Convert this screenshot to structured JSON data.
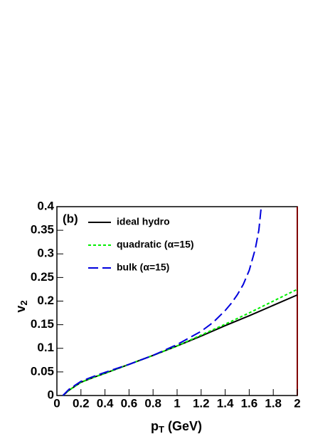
{
  "chart_data": {
    "type": "line",
    "label": "(b)",
    "xlabel": "p",
    "xlabel_sub": "T",
    "xlabel_rest": " (GeV)",
    "ylabel": "v",
    "ylabel_sub": "2",
    "xlim": [
      0,
      2
    ],
    "ylim": [
      0,
      0.4
    ],
    "xticks": [
      0,
      0.2,
      0.4,
      0.6,
      0.8,
      1,
      1.2,
      1.4,
      1.6,
      1.8,
      2
    ],
    "yticks": [
      0,
      0.05,
      0.1,
      0.15,
      0.2,
      0.25,
      0.3,
      0.35,
      0.4
    ],
    "series": [
      {
        "name": "ideal hydro",
        "color": "#000000",
        "style": "solid",
        "x": [
          0.05,
          0.1,
          0.2,
          0.3,
          0.4,
          0.6,
          0.8,
          1.0,
          1.2,
          1.4,
          1.6,
          1.8,
          2.0
        ],
        "values": [
          0,
          0.011,
          0.028,
          0.038,
          0.047,
          0.066,
          0.085,
          0.105,
          0.126,
          0.148,
          0.169,
          0.191,
          0.213
        ]
      },
      {
        "name": "quadratic (α=15)",
        "color": "#00ee00",
        "style": "dotted",
        "x": [
          0.05,
          0.1,
          0.2,
          0.3,
          0.4,
          0.6,
          0.8,
          1.0,
          1.2,
          1.4,
          1.6,
          1.8,
          2.0
        ],
        "values": [
          0,
          0.011,
          0.028,
          0.038,
          0.047,
          0.066,
          0.085,
          0.105,
          0.128,
          0.151,
          0.175,
          0.2,
          0.225
        ]
      },
      {
        "name": "bulk (α=15)",
        "color": "#0000dd",
        "style": "dashed",
        "x": [
          0.05,
          0.1,
          0.2,
          0.3,
          0.4,
          0.6,
          0.8,
          1.0,
          1.2,
          1.3,
          1.4,
          1.45,
          1.5,
          1.55,
          1.6,
          1.65,
          1.68,
          1.7
        ],
        "values": [
          0,
          0.013,
          0.03,
          0.04,
          0.049,
          0.066,
          0.085,
          0.108,
          0.136,
          0.155,
          0.18,
          0.195,
          0.213,
          0.235,
          0.265,
          0.31,
          0.35,
          0.4
        ]
      }
    ]
  }
}
